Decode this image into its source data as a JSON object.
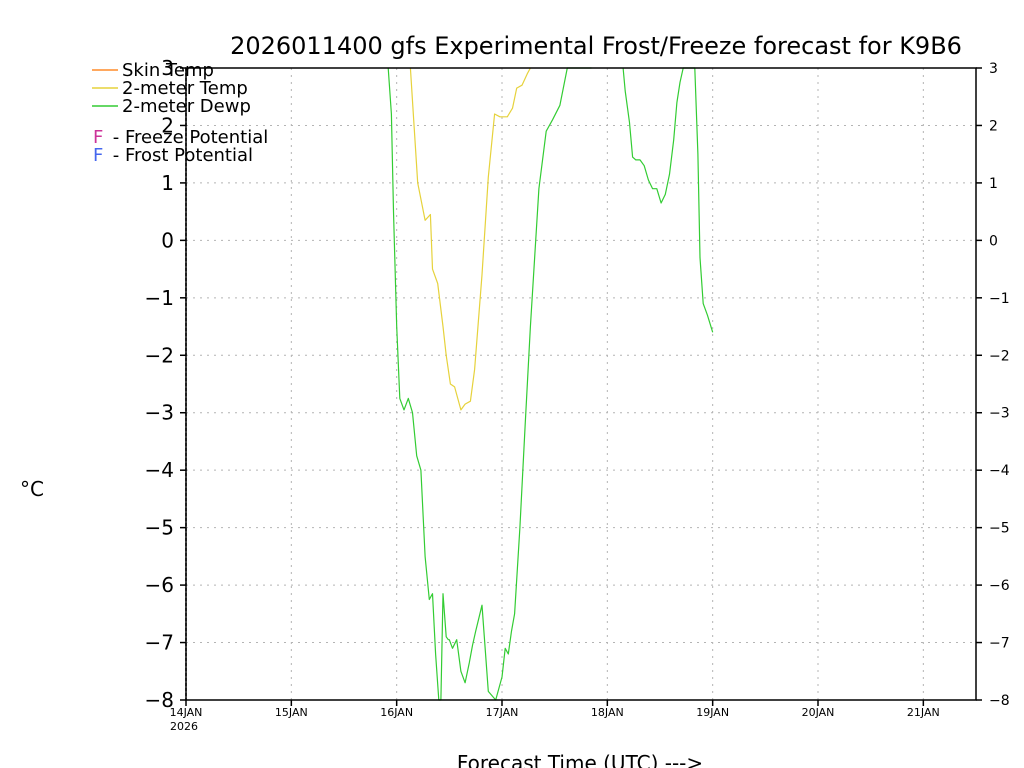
{
  "chart_data": {
    "type": "line",
    "title": "2026011400 gfs Experimental Frost/Freeze forecast for K9B6",
    "xlabel": "Forecast Time (UTC) --->",
    "ylabel": "°C",
    "ylim": [
      -8,
      3
    ],
    "xlim": [
      0,
      7.5
    ],
    "yticks": [
      3,
      2,
      1,
      0,
      -1,
      -2,
      -3,
      -4,
      -5,
      -6,
      -7,
      -8
    ],
    "ytick_labels": [
      "3",
      "2",
      "1",
      "0",
      "−1",
      "−2",
      "−3",
      "−4",
      "−5",
      "−6",
      "−7",
      "−8"
    ],
    "xticks": [
      {
        "x": 0,
        "label": "14JAN",
        "sublabel": "2026"
      },
      {
        "x": 1,
        "label": "15JAN",
        "sublabel": ""
      },
      {
        "x": 2,
        "label": "16JAN",
        "sublabel": ""
      },
      {
        "x": 3,
        "label": "17JAN",
        "sublabel": ""
      },
      {
        "x": 4,
        "label": "18JAN",
        "sublabel": ""
      },
      {
        "x": 5,
        "label": "19JAN",
        "sublabel": ""
      },
      {
        "x": 6,
        "label": "20JAN",
        "sublabel": ""
      },
      {
        "x": 7,
        "label": "21JAN",
        "sublabel": ""
      }
    ],
    "grid": true,
    "legend_position": "top-left",
    "legend": [
      {
        "label": "Skin Temp",
        "color": "#ff8c2a"
      },
      {
        "label": "2-meter Temp",
        "color": "#e6d23c"
      },
      {
        "label": "2-meter Dewp",
        "color": "#33cc33"
      }
    ],
    "potential_legend": [
      {
        "symbol": "F",
        "label": " - Freeze Potential",
        "color": "#cc3399"
      },
      {
        "symbol": "F",
        "label": " - Frost Potential",
        "color": "#4466ee"
      }
    ],
    "series": [
      {
        "name": "2-meter Temp",
        "color": "#e6d23c",
        "x": [
          2.13,
          2.2,
          2.27,
          2.32,
          2.34,
          2.39,
          2.44,
          2.47,
          2.51,
          2.55,
          2.61,
          2.65,
          2.7,
          2.74,
          2.81,
          2.87,
          2.93,
          2.98,
          3.05,
          3.1,
          3.14,
          3.19,
          3.24,
          3.27
        ],
        "values": [
          3.0,
          1.0,
          0.35,
          0.45,
          -0.5,
          -0.75,
          -1.5,
          -2.0,
          -2.5,
          -2.55,
          -2.95,
          -2.85,
          -2.8,
          -2.25,
          -0.6,
          1.1,
          2.2,
          2.15,
          2.15,
          2.3,
          2.65,
          2.7,
          2.9,
          3.0
        ]
      },
      {
        "name": "2-meter Dewp",
        "color": "#33cc33",
        "x": [
          1.92,
          1.95,
          1.97,
          2.0,
          2.03,
          2.07,
          2.11,
          2.15,
          2.19,
          2.23,
          2.27,
          2.31,
          2.34,
          2.37,
          2.4,
          2.42,
          2.44,
          2.47,
          2.49,
          2.5,
          2.53,
          2.57,
          2.61,
          2.65,
          2.69,
          2.72,
          2.75,
          2.81,
          2.87,
          2.94,
          3.0,
          3.03,
          3.06,
          3.09,
          3.12,
          3.17,
          3.22,
          3.27,
          3.35,
          3.42,
          3.48,
          3.55,
          3.62,
          3.69,
          3.75,
          3.8,
          3.85
        ],
        "values": [
          3.0,
          2.2,
          0.5,
          -1.5,
          -2.75,
          -2.95,
          -2.75,
          -3.0,
          -3.75,
          -4.0,
          -5.5,
          -6.25,
          -6.15,
          -7.2,
          -8.0,
          -8.0,
          -6.15,
          -6.9,
          -6.95,
          -6.95,
          -7.1,
          -6.95,
          -7.5,
          -7.7,
          -7.35,
          -7.05,
          -6.8,
          -6.35,
          -7.85,
          -8.0,
          -7.6,
          -7.1,
          -7.2,
          -6.8,
          -6.5,
          -5.0,
          -3.2,
          -1.5,
          0.9,
          1.9,
          2.1,
          2.35,
          3.0,
          3.0,
          3.0,
          3.0,
          3.0
        ]
      },
      {
        "name": "2-meter Dewp (late)",
        "color": "#33cc33",
        "x": [
          4.15,
          4.17,
          4.21,
          4.24,
          4.27,
          4.31,
          4.35,
          4.39,
          4.43,
          4.47,
          4.51,
          4.55,
          4.59,
          4.63,
          4.66,
          4.69,
          4.72,
          4.75,
          4.8,
          4.83,
          4.86,
          4.88,
          4.91,
          4.95,
          5.0
        ],
        "values": [
          3.0,
          2.6,
          2.05,
          1.45,
          1.4,
          1.4,
          1.3,
          1.05,
          0.9,
          0.9,
          0.65,
          0.8,
          1.15,
          1.75,
          2.4,
          2.75,
          3.0,
          3.0,
          3.0,
          3.0,
          1.5,
          -0.3,
          -1.1,
          -1.3,
          -1.6
        ]
      }
    ]
  }
}
